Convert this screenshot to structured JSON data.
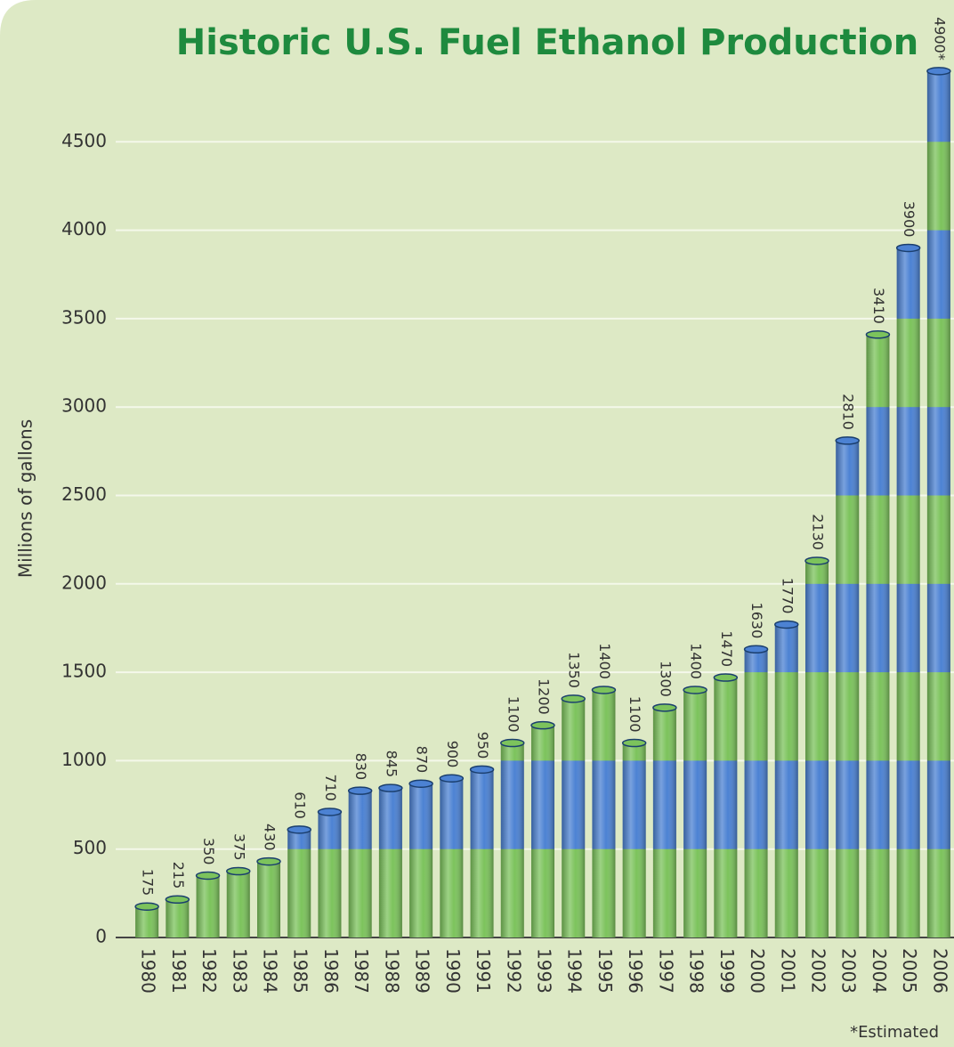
{
  "chart_data": {
    "type": "bar",
    "title": "Historic U.S. Fuel Ethanol Production",
    "y_label": "Millions of gallons",
    "footnote": "*Estimated",
    "categories": [
      "1980",
      "1981",
      "1982",
      "1983",
      "1984",
      "1985",
      "1986",
      "1987",
      "1988",
      "1989",
      "1990",
      "1991",
      "1992",
      "1993",
      "1994",
      "1995",
      "1996",
      "1997",
      "1998",
      "1999",
      "2000",
      "2001",
      "2002",
      "2003",
      "2004",
      "2005",
      "2006"
    ],
    "values": [
      175,
      215,
      350,
      375,
      430,
      610,
      710,
      830,
      845,
      870,
      900,
      950,
      1100,
      1200,
      1350,
      1400,
      1100,
      1300,
      1400,
      1470,
      1630,
      1770,
      2130,
      2810,
      3410,
      3900,
      4900
    ],
    "value_labels": [
      "175",
      "215",
      "350",
      "375",
      "430",
      "610",
      "710",
      "830",
      "845",
      "870",
      "900",
      "950",
      "1100",
      "1200",
      "1350",
      "1400",
      "1100",
      "1300",
      "1400",
      "1470",
      "1630",
      "1770",
      "2130",
      "2810",
      "3410",
      "3900",
      "4900*"
    ],
    "colors": [
      "#7cc35c",
      "#4c82d3"
    ],
    "ylim": [
      0,
      5000
    ],
    "yticks": [
      0,
      500,
      1000,
      1500,
      2000,
      2500,
      3000,
      3500,
      4000,
      4500
    ],
    "grid": true
  }
}
